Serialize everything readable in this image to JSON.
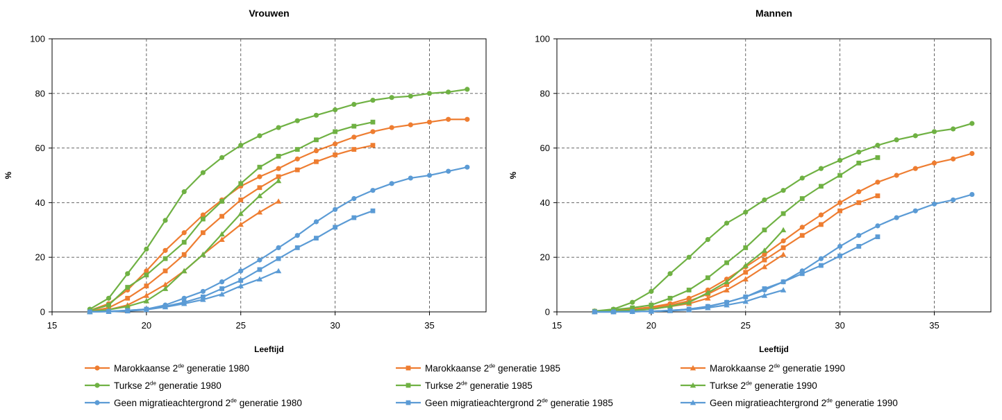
{
  "colors": {
    "marokkaanse": "#ee7d31",
    "turkse": "#6fb143",
    "geen": "#5b9bd5"
  },
  "chart_data": [
    {
      "type": "line",
      "title": "Vrouwen",
      "xlabel": "Leeftijd",
      "ylabel": "%",
      "xlim": [
        15,
        38
      ],
      "ylim": [
        0,
        100
      ],
      "xticks": [
        15,
        20,
        25,
        30,
        35
      ],
      "yticks": [
        0,
        20,
        40,
        60,
        80,
        100
      ],
      "grid": "dashed at x ticks and y ticks",
      "series": [
        {
          "name": "Marokkaanse 2de generatie 1980",
          "group": "marokkaanse",
          "marker": "circle",
          "x": [
            17,
            18,
            19,
            20,
            21,
            22,
            23,
            24,
            25,
            26,
            27,
            28,
            29,
            30,
            31,
            32,
            33,
            34,
            35,
            36,
            37
          ],
          "y": [
            0.5,
            3,
            8,
            15,
            22.5,
            29,
            35.5,
            41,
            46,
            49.5,
            52.5,
            56,
            59,
            61.5,
            64,
            66,
            67.5,
            68.5,
            69.5,
            70.5,
            70.5
          ]
        },
        {
          "name": "Marokkaanse 2de generatie 1985",
          "group": "marokkaanse",
          "marker": "square",
          "x": [
            17,
            18,
            19,
            20,
            21,
            22,
            23,
            24,
            25,
            26,
            27,
            28,
            29,
            30,
            31,
            32
          ],
          "y": [
            0.2,
            1.5,
            5,
            9.5,
            15,
            21,
            29,
            35,
            41,
            45.5,
            49.5,
            52,
            55,
            57.5,
            59.5,
            61
          ]
        },
        {
          "name": "Marokkaanse 2de generatie 1990",
          "group": "marokkaanse",
          "marker": "triangle",
          "x": [
            17,
            18,
            19,
            20,
            21,
            22,
            23,
            24,
            25,
            26,
            27
          ],
          "y": [
            0.1,
            0.8,
            2.5,
            6,
            10,
            15,
            21,
            26.5,
            32,
            36.5,
            40.5
          ]
        },
        {
          "name": "Turkse 2de generatie 1980",
          "group": "turkse",
          "marker": "circle",
          "x": [
            17,
            18,
            19,
            20,
            21,
            22,
            23,
            24,
            25,
            26,
            27,
            28,
            29,
            30,
            31,
            32,
            33,
            34,
            35,
            36,
            37
          ],
          "y": [
            1,
            5,
            14,
            23,
            33.5,
            44,
            51,
            56.5,
            61,
            64.5,
            67.5,
            70,
            72,
            74,
            76,
            77.5,
            78.5,
            79,
            80,
            80.5,
            81.5
          ]
        },
        {
          "name": "Turkse 2de generatie 1985",
          "group": "turkse",
          "marker": "square",
          "x": [
            17,
            18,
            19,
            20,
            21,
            22,
            23,
            24,
            25,
            26,
            27,
            28,
            29,
            30,
            31,
            32
          ],
          "y": [
            0.5,
            2.5,
            9,
            13.5,
            19.5,
            25.5,
            34,
            40.5,
            47,
            53,
            57,
            59.5,
            63,
            66,
            68,
            69.5
          ]
        },
        {
          "name": "Turkse 2de generatie 1990",
          "group": "turkse",
          "marker": "triangle",
          "x": [
            17,
            18,
            19,
            20,
            21,
            22,
            23,
            24,
            25,
            26,
            27
          ],
          "y": [
            0.1,
            0.8,
            2,
            4,
            8.5,
            15,
            21,
            28.5,
            36,
            42.5,
            48
          ]
        },
        {
          "name": "Geen migratieachtergrond 2de generatie 1980",
          "group": "geen",
          "marker": "circle",
          "x": [
            17,
            18,
            19,
            20,
            21,
            22,
            23,
            24,
            25,
            26,
            27,
            28,
            29,
            30,
            31,
            32,
            33,
            34,
            35,
            36,
            37
          ],
          "y": [
            0,
            0.2,
            0.5,
            1,
            2.5,
            5,
            7.5,
            11,
            15,
            19,
            23.5,
            28,
            33,
            37.5,
            41.5,
            44.5,
            47,
            49,
            50,
            51.5,
            53
          ]
        },
        {
          "name": "Geen migratieachtergrond 2de generatie 1985",
          "group": "geen",
          "marker": "square",
          "x": [
            17,
            18,
            19,
            20,
            21,
            22,
            23,
            24,
            25,
            26,
            27,
            28,
            29,
            30,
            31,
            32
          ],
          "y": [
            0,
            0.2,
            0.5,
            1,
            2,
            3.5,
            5.5,
            8.5,
            11.5,
            15.5,
            19.5,
            23.5,
            27,
            31,
            34.5,
            37
          ]
        },
        {
          "name": "Geen migratieachtergrond 2de generatie 1990",
          "group": "geen",
          "marker": "triangle",
          "x": [
            17,
            18,
            19,
            20,
            21,
            22,
            23,
            24,
            25,
            26,
            27
          ],
          "y": [
            0,
            0.1,
            0.3,
            0.8,
            1.8,
            3,
            4.5,
            6.5,
            9.5,
            12,
            15
          ]
        }
      ]
    },
    {
      "type": "line",
      "title": "Mannen",
      "xlabel": "Leeftijd",
      "ylabel": "%",
      "xlim": [
        15,
        38
      ],
      "ylim": [
        0,
        100
      ],
      "xticks": [
        15,
        20,
        25,
        30,
        35
      ],
      "yticks": [
        0,
        20,
        40,
        60,
        80,
        100
      ],
      "grid": "dashed at x ticks and y ticks",
      "series": [
        {
          "name": "Marokkaanse 2de generatie 1980",
          "group": "marokkaanse",
          "marker": "circle",
          "x": [
            17,
            18,
            19,
            20,
            21,
            22,
            23,
            24,
            25,
            26,
            27,
            28,
            29,
            30,
            31,
            32,
            33,
            34,
            35,
            36,
            37
          ],
          "y": [
            0.3,
            0.6,
            1,
            1.8,
            3,
            5,
            8,
            12,
            16.5,
            21,
            26,
            31,
            35.5,
            40,
            44,
            47.5,
            50,
            52.5,
            54.5,
            56,
            58
          ]
        },
        {
          "name": "Marokkaanse 2de generatie 1985",
          "group": "marokkaanse",
          "marker": "square",
          "x": [
            17,
            18,
            19,
            20,
            21,
            22,
            23,
            24,
            25,
            26,
            27,
            28,
            29,
            30,
            31,
            32
          ],
          "y": [
            0.2,
            0.4,
            0.8,
            1.5,
            2.5,
            4,
            6.5,
            10,
            14.5,
            19,
            23.5,
            28,
            32,
            37,
            40,
            42.5
          ]
        },
        {
          "name": "Marokkaanse 2de generatie 1990",
          "group": "marokkaanse",
          "marker": "triangle",
          "x": [
            17,
            18,
            19,
            20,
            21,
            22,
            23,
            24,
            25,
            26,
            27
          ],
          "y": [
            0.1,
            0.3,
            0.6,
            1,
            2,
            3,
            5,
            8,
            12,
            16.5,
            21
          ]
        },
        {
          "name": "Turkse 2de generatie 1980",
          "group": "turkse",
          "marker": "circle",
          "x": [
            17,
            18,
            19,
            20,
            21,
            22,
            23,
            24,
            25,
            26,
            27,
            28,
            29,
            30,
            31,
            32,
            33,
            34,
            35,
            36,
            37
          ],
          "y": [
            0.3,
            1,
            3.5,
            7.5,
            14,
            20,
            26.5,
            32.5,
            36.5,
            41,
            44.5,
            49,
            52.5,
            55.5,
            58.5,
            61,
            63,
            64.5,
            66,
            67,
            69
          ]
        },
        {
          "name": "Turkse 2de generatie 1985",
          "group": "turkse",
          "marker": "square",
          "x": [
            17,
            18,
            19,
            20,
            21,
            22,
            23,
            24,
            25,
            26,
            27,
            28,
            29,
            30,
            31,
            32
          ],
          "y": [
            0.2,
            0.8,
            1.5,
            2.5,
            5,
            8,
            12.5,
            18,
            23.5,
            30,
            36,
            41.5,
            46,
            50,
            54.5,
            56.5
          ]
        },
        {
          "name": "Turkse 2de generatie 1990",
          "group": "turkse",
          "marker": "triangle",
          "x": [
            17,
            18,
            19,
            20,
            21,
            22,
            23,
            24,
            25,
            26,
            27
          ],
          "y": [
            0.1,
            0.3,
            0.6,
            1,
            2,
            3.5,
            7,
            11,
            17,
            22.5,
            30
          ]
        },
        {
          "name": "Geen migratieachtergrond 2de generatie 1980",
          "group": "geen",
          "marker": "circle",
          "x": [
            17,
            18,
            19,
            20,
            21,
            22,
            23,
            24,
            25,
            26,
            27,
            28,
            29,
            30,
            31,
            32,
            33,
            34,
            35,
            36,
            37
          ],
          "y": [
            0,
            0,
            0.1,
            0.2,
            0.5,
            1,
            2,
            3.5,
            5.5,
            8,
            11,
            15,
            19.5,
            24,
            28,
            31.5,
            34.5,
            37,
            39.5,
            41,
            43
          ]
        },
        {
          "name": "Geen migratieachtergrond 2de generatie 1985",
          "group": "geen",
          "marker": "square",
          "x": [
            17,
            18,
            19,
            20,
            21,
            22,
            23,
            24,
            25,
            26,
            27,
            28,
            29,
            30,
            31,
            32
          ],
          "y": [
            0,
            0,
            0.1,
            0.2,
            0.5,
            1,
            2,
            3.5,
            5.5,
            8.5,
            11,
            14,
            17,
            20.5,
            24,
            27.5
          ]
        },
        {
          "name": "Geen migratieachtergrond 2de generatie 1990",
          "group": "geen",
          "marker": "triangle",
          "x": [
            17,
            18,
            19,
            20,
            21,
            22,
            23,
            24,
            25,
            26,
            27
          ],
          "y": [
            0,
            0,
            0.1,
            0.2,
            0.4,
            0.8,
            1.5,
            2.5,
            3.8,
            6,
            8
          ]
        }
      ]
    }
  ],
  "legend": {
    "items": [
      {
        "prefix": "Marokkaanse 2",
        "sup": "de",
        "suffix": " generatie 1980",
        "group": "marokkaanse",
        "marker": "circle"
      },
      {
        "prefix": "Marokkaanse 2",
        "sup": "de",
        "suffix": " generatie 1985",
        "group": "marokkaanse",
        "marker": "square"
      },
      {
        "prefix": "Marokkaanse 2",
        "sup": "de",
        "suffix": " generatie 1990",
        "group": "marokkaanse",
        "marker": "triangle"
      },
      {
        "prefix": "Turkse 2",
        "sup": "de",
        "suffix": " generatie 1980",
        "group": "turkse",
        "marker": "circle"
      },
      {
        "prefix": "Turkse 2",
        "sup": "de",
        "suffix": " generatie 1985",
        "group": "turkse",
        "marker": "square"
      },
      {
        "prefix": "Turkse 2",
        "sup": "de",
        "suffix": " generatie 1990",
        "group": "turkse",
        "marker": "triangle"
      },
      {
        "prefix": "Geen migratieachtergrond 2",
        "sup": "de",
        "suffix": " generatie 1980",
        "group": "geen",
        "marker": "circle"
      },
      {
        "prefix": "Geen migratieachtergrond 2",
        "sup": "de",
        "suffix": " generatie 1985",
        "group": "geen",
        "marker": "square"
      },
      {
        "prefix": "Geen migratieachtergrond 2",
        "sup": "de",
        "suffix": " generatie 1990",
        "group": "geen",
        "marker": "triangle"
      }
    ]
  }
}
